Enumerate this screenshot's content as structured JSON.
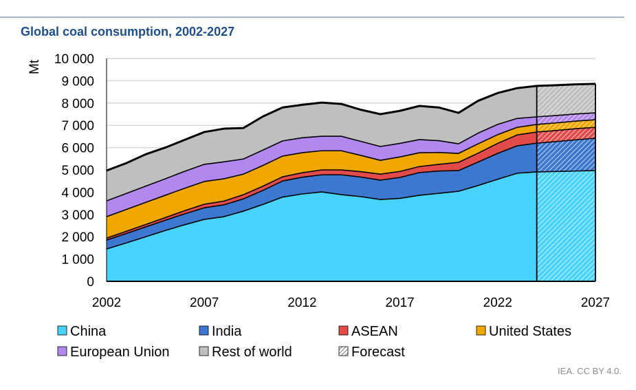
{
  "chart_data": {
    "type": "area",
    "stacked": true,
    "title": "Global coal consumption, 2002-2027",
    "ylabel": "Mt",
    "xlabel": "",
    "ylim": [
      0,
      10000
    ],
    "yticks": [
      "0",
      "1 000",
      "2 000",
      "3 000",
      "4 000",
      "5 000",
      "6 000",
      "7 000",
      "8 000",
      "9 000",
      "10 000"
    ],
    "ytick_values": [
      0,
      1000,
      2000,
      3000,
      4000,
      5000,
      6000,
      7000,
      8000,
      9000,
      10000
    ],
    "xticks": [
      "2002",
      "2007",
      "2012",
      "2017",
      "2022",
      "2027"
    ],
    "xtick_values": [
      2002,
      2007,
      2012,
      2017,
      2022,
      2027
    ],
    "grid": true,
    "legend_position": "bottom",
    "forecast_start": 2024,
    "x": [
      2002,
      2003,
      2004,
      2005,
      2006,
      2007,
      2008,
      2009,
      2010,
      2011,
      2012,
      2013,
      2014,
      2015,
      2016,
      2017,
      2018,
      2019,
      2020,
      2021,
      2022,
      2023,
      2024,
      2025,
      2026,
      2027
    ],
    "series": [
      {
        "name": "China",
        "color": "#47d3fd",
        "values": [
          1450,
          1720,
          2000,
          2280,
          2540,
          2780,
          2900,
          3150,
          3450,
          3780,
          3920,
          4010,
          3890,
          3800,
          3670,
          3720,
          3860,
          3950,
          4040,
          4300,
          4580,
          4850,
          4910,
          4930,
          4950,
          4970
        ]
      },
      {
        "name": "India",
        "color": "#3c78d0",
        "values": [
          400,
          420,
          440,
          460,
          490,
          520,
          530,
          550,
          630,
          720,
          750,
          770,
          890,
          880,
          870,
          940,
          1020,
          1000,
          930,
          1050,
          1160,
          1230,
          1290,
          1340,
          1400,
          1450
        ]
      },
      {
        "name": "ASEAN",
        "color": "#e34a4a",
        "values": [
          90,
          100,
          110,
          120,
          140,
          160,
          170,
          190,
          190,
          190,
          200,
          220,
          220,
          240,
          270,
          270,
          270,
          300,
          370,
          400,
          450,
          490,
          500,
          500,
          500,
          490
        ]
      },
      {
        "name": "United States",
        "color": "#f0a800",
        "values": [
          960,
          980,
          990,
          1000,
          1010,
          1020,
          1000,
          920,
          930,
          930,
          900,
          860,
          860,
          730,
          620,
          650,
          620,
          530,
          400,
          420,
          390,
          340,
          340,
          340,
          340,
          340
        ]
      },
      {
        "name": "European Union",
        "color": "#b388ee",
        "values": [
          710,
          720,
          730,
          740,
          760,
          770,
          760,
          680,
          690,
          680,
          670,
          650,
          650,
          630,
          620,
          610,
          590,
          530,
          430,
          480,
          460,
          400,
          340,
          330,
          320,
          310
        ]
      },
      {
        "name": "Rest of world",
        "color": "#bfbfbf",
        "values": [
          1360,
          1360,
          1430,
          1400,
          1410,
          1450,
          1490,
          1390,
          1510,
          1500,
          1480,
          1510,
          1450,
          1420,
          1450,
          1460,
          1510,
          1490,
          1390,
          1450,
          1410,
          1360,
          1390,
          1360,
          1330,
          1300
        ]
      }
    ],
    "legend": [
      "China",
      "India",
      "ASEAN",
      "United States",
      "European Union",
      "Rest of world",
      "Forecast"
    ]
  },
  "credit": "IEA. CC BY 4.0."
}
